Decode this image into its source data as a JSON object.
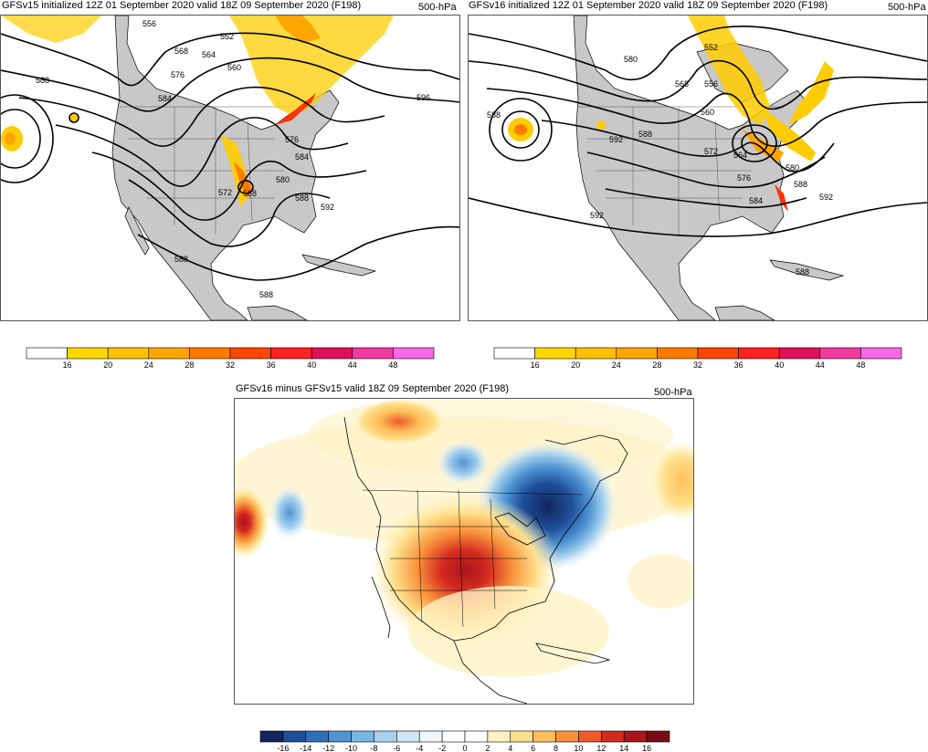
{
  "panels": {
    "gfsv15": {
      "title": "GFSv15 initialized 12Z 01 September 2020 valid 18Z 09 September 2020 (F198)",
      "level": "500-hPa",
      "contour_labels": [
        "556",
        "552",
        "568",
        "564",
        "560",
        "576",
        "584",
        "588",
        "596",
        "576",
        "584",
        "580",
        "588",
        "592",
        "572",
        "568",
        "588",
        "588"
      ]
    },
    "gfsv16": {
      "title": "GFSv16 initialized 12Z 01 September 2020 valid 18Z 09 September 2020 (F198)",
      "level": "500-hPa",
      "contour_labels": [
        "552",
        "580",
        "568",
        "556",
        "588",
        "592",
        "588",
        "560",
        "572",
        "564",
        "576",
        "580",
        "588",
        "584",
        "592",
        "592",
        "588"
      ]
    },
    "difference": {
      "title": "GFSv16 minus GFSv15 valid 18Z 09 September 2020 (F198)",
      "level": "500-hPa"
    }
  },
  "wind_colorbar": {
    "ticks": [
      "16",
      "20",
      "24",
      "28",
      "32",
      "36",
      "40",
      "44",
      "48"
    ],
    "colors": [
      "#ffffff",
      "#ffd700",
      "#ffc000",
      "#ffa500",
      "#ff7a00",
      "#ff4500",
      "#ff2020",
      "#e0105a",
      "#f03aa0",
      "#f868e8"
    ]
  },
  "diff_colorbar": {
    "ticks": [
      "-16",
      "-14",
      "-12",
      "-10",
      "-8",
      "-6",
      "-4",
      "-2",
      "0",
      "2",
      "4",
      "6",
      "8",
      "10",
      "12",
      "14",
      "16"
    ],
    "colors": [
      "#13255e",
      "#1f4f9a",
      "#2f6fba",
      "#4f94d2",
      "#78b6e4",
      "#a8d2ef",
      "#cfe6f6",
      "#eef6fc",
      "#ffffff",
      "#ffffff",
      "#fff2c4",
      "#fee08c",
      "#fdbf5a",
      "#f9923b",
      "#ee5b2b",
      "#d42a20",
      "#a8161c",
      "#7a0d14"
    ]
  },
  "colors": {
    "land": "#c8c8c8",
    "contour": "#000000",
    "wind_yellow": "#ffcc00",
    "wind_orange": "#ff8c00",
    "wind_red": "#ff3300"
  }
}
